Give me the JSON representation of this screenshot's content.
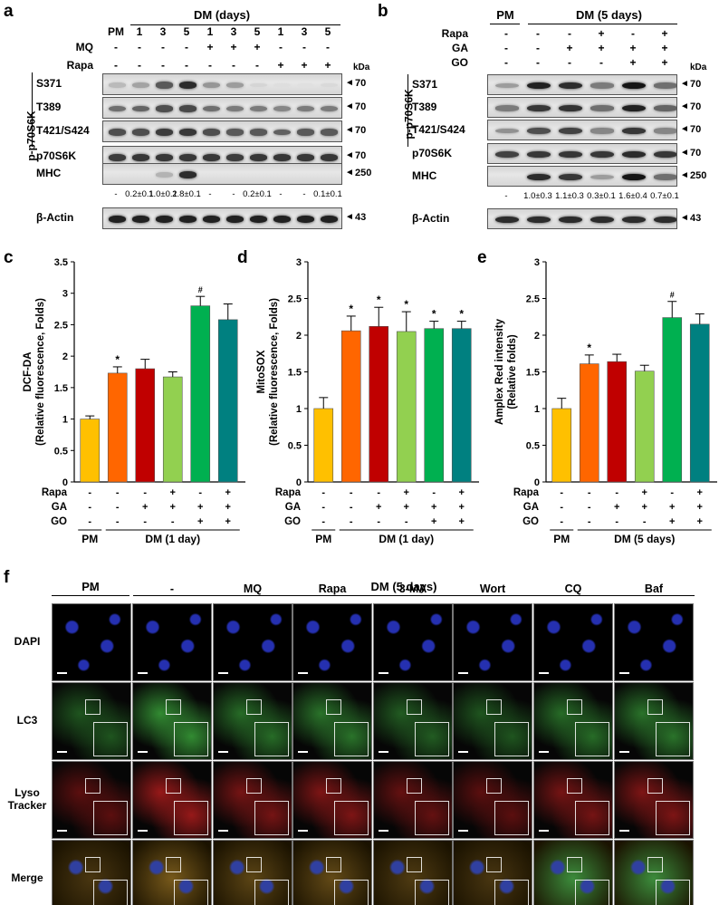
{
  "panels": [
    "a",
    "b",
    "c",
    "d",
    "e",
    "f"
  ],
  "common": {
    "kda": "kDa",
    "pm": "PM",
    "minus": "-",
    "plus": "+",
    "star": "*",
    "hash": "#"
  },
  "panel_a": {
    "header": "DM (days)",
    "lanes": [
      "PM",
      "1",
      "3",
      "5",
      "1",
      "3",
      "5",
      "1",
      "3",
      "5"
    ],
    "mq_label": "MQ",
    "mq": [
      "-",
      "-",
      "-",
      "-",
      "+",
      "+",
      "+",
      "-",
      "-",
      "-"
    ],
    "rapa_label": "Rapa",
    "rapa": [
      "-",
      "-",
      "-",
      "-",
      "-",
      "-",
      "-",
      "+",
      "+",
      "+"
    ],
    "group_label": "p-p70S6K",
    "rows": [
      {
        "label": "S371",
        "kda": "70",
        "bands": [
          0.22,
          0.32,
          0.65,
          0.85,
          0.38,
          0.35,
          0.1,
          0.06,
          0.05,
          0.08
        ]
      },
      {
        "label": "T389",
        "kda": "70",
        "bands": [
          0.55,
          0.6,
          0.7,
          0.72,
          0.55,
          0.5,
          0.5,
          0.45,
          0.5,
          0.5
        ]
      },
      {
        "label": "T421/S424",
        "kda": "70",
        "bands": [
          0.7,
          0.7,
          0.78,
          0.8,
          0.7,
          0.65,
          0.65,
          0.62,
          0.65,
          0.65
        ]
      },
      {
        "label": "p70S6K",
        "kda": "70",
        "bands": [
          0.78,
          0.8,
          0.8,
          0.8,
          0.8,
          0.78,
          0.8,
          0.8,
          0.8,
          0.8
        ]
      },
      {
        "label": "MHC",
        "kda": "250",
        "bands": [
          0,
          0,
          0.25,
          0.85,
          0,
          0,
          0,
          0,
          0,
          0
        ]
      },
      {
        "label": "β-Actin",
        "kda": "43",
        "bands": [
          0.9,
          0.9,
          0.9,
          0.9,
          0.9,
          0.9,
          0.9,
          0.9,
          0.9,
          0.9
        ]
      }
    ],
    "mhc_quant": [
      "-",
      "0.2±0.1",
      "1.0±0.1",
      "2.8±0.1",
      "-",
      "-",
      "0.2±0.1",
      "-",
      "-",
      "0.1±0.1"
    ]
  },
  "panel_b": {
    "pm": "PM",
    "header": "DM (5 days)",
    "rapa_label": "Rapa",
    "rapa": [
      "-",
      "-",
      "-",
      "+",
      "-",
      "+"
    ],
    "ga_label": "GA",
    "ga": [
      "-",
      "-",
      "+",
      "+",
      "+",
      "+"
    ],
    "go_label": "GO",
    "go": [
      "-",
      "-",
      "-",
      "-",
      "+",
      "+"
    ],
    "group_label": "p-p70S6K",
    "rows": [
      {
        "label": "S371",
        "kda": "70",
        "bands": [
          0.35,
          0.9,
          0.85,
          0.5,
          0.95,
          0.55
        ]
      },
      {
        "label": "T389",
        "kda": "70",
        "bands": [
          0.5,
          0.8,
          0.82,
          0.55,
          0.9,
          0.6
        ]
      },
      {
        "label": "T421/S424",
        "kda": "70",
        "bands": [
          0.4,
          0.7,
          0.75,
          0.45,
          0.8,
          0.45
        ]
      },
      {
        "label": "p70S6K",
        "kda": "70",
        "bands": [
          0.75,
          0.8,
          0.8,
          0.8,
          0.85,
          0.8
        ]
      },
      {
        "label": "MHC",
        "kda": "250",
        "bands": [
          0,
          0.85,
          0.8,
          0.35,
          0.95,
          0.55
        ]
      },
      {
        "label": "β-Actin",
        "kda": "43",
        "bands": [
          0.85,
          0.85,
          0.85,
          0.85,
          0.85,
          0.85
        ]
      }
    ],
    "mhc_quant": [
      "-",
      "1.0±0.3",
      "1.1±0.3",
      "0.3±0.1",
      "1.6±0.4",
      "0.7±0.1"
    ]
  },
  "chart_data": [
    {
      "type": "bar",
      "panel": "c",
      "ylabel": "DCF-DA\n(Relative fluorescence, Folds)",
      "ylim": [
        0,
        3.5
      ],
      "yticks": [
        "0",
        "0.5",
        "1",
        "1.5",
        "2",
        "2.5",
        "3",
        "3.5"
      ],
      "values": [
        1.0,
        1.73,
        1.8,
        1.67,
        2.8,
        2.58
      ],
      "errors": [
        0.05,
        0.1,
        0.15,
        0.08,
        0.15,
        0.25
      ],
      "marks": [
        "",
        "*",
        "",
        "",
        "#",
        ""
      ],
      "rapa": [
        "-",
        "-",
        "-",
        "+",
        "-",
        "+"
      ],
      "ga": [
        "-",
        "-",
        "+",
        "+",
        "+",
        "+"
      ],
      "go": [
        "-",
        "-",
        "-",
        "-",
        "+",
        "+"
      ],
      "group_pm": "PM",
      "group_dm": "DM (1 day)",
      "colors": [
        "#FFC000",
        "#FF6600",
        "#C00000",
        "#92D050",
        "#00B050",
        "#008080"
      ]
    },
    {
      "type": "bar",
      "panel": "d",
      "ylabel": "MitoSOX\n(Relative fluorescence, Folds)",
      "ylim": [
        0,
        3
      ],
      "yticks": [
        "0",
        "0.5",
        "1",
        "1.5",
        "2",
        "2.5",
        "3"
      ],
      "values": [
        1.0,
        2.06,
        2.12,
        2.05,
        2.09,
        2.09
      ],
      "errors": [
        0.15,
        0.2,
        0.26,
        0.27,
        0.1,
        0.1
      ],
      "marks": [
        "",
        "*",
        "*",
        "*",
        "*",
        "*"
      ],
      "rapa": [
        "-",
        "-",
        "-",
        "+",
        "-",
        "+"
      ],
      "ga": [
        "-",
        "-",
        "+",
        "+",
        "+",
        "+"
      ],
      "go": [
        "-",
        "-",
        "-",
        "-",
        "+",
        "+"
      ],
      "group_pm": "PM",
      "group_dm": "DM (1 day)",
      "colors": [
        "#FFC000",
        "#FF6600",
        "#C00000",
        "#92D050",
        "#00B050",
        "#008080"
      ]
    },
    {
      "type": "bar",
      "panel": "e",
      "ylabel": "Amplex Red intensity\n(Relative folds)",
      "ylim": [
        0,
        3
      ],
      "yticks": [
        "0",
        "0.5",
        "1",
        "1.5",
        "2",
        "2.5",
        "3"
      ],
      "values": [
        1.0,
        1.61,
        1.64,
        1.51,
        2.24,
        2.15
      ],
      "errors": [
        0.14,
        0.12,
        0.1,
        0.08,
        0.22,
        0.14
      ],
      "marks": [
        "",
        "*",
        "",
        "",
        "#",
        ""
      ],
      "rapa": [
        "-",
        "-",
        "-",
        "+",
        "-",
        "+"
      ],
      "ga": [
        "-",
        "-",
        "+",
        "+",
        "+",
        "+"
      ],
      "go": [
        "-",
        "-",
        "-",
        "-",
        "+",
        "+"
      ],
      "group_pm": "PM",
      "group_dm": "DM (5 days)",
      "colors": [
        "#FFC000",
        "#FF6600",
        "#C00000",
        "#92D050",
        "#00B050",
        "#008080"
      ]
    }
  ],
  "panel_f": {
    "pm": "PM",
    "dm": "DM (5 days)",
    "columns": [
      "-",
      "-",
      "MQ",
      "Rapa",
      "3-MA",
      "Wort",
      "CQ",
      "Baf"
    ],
    "rows": [
      "DAPI",
      "LC3",
      "Lyso\nTracker",
      "Merge"
    ],
    "row_colors": {
      "DAPI": "#0a0f55",
      "LC3": "#1f6b1f",
      "Lyso\nTracker": "#7a0e0e",
      "Merge": "#6e5a18"
    }
  }
}
